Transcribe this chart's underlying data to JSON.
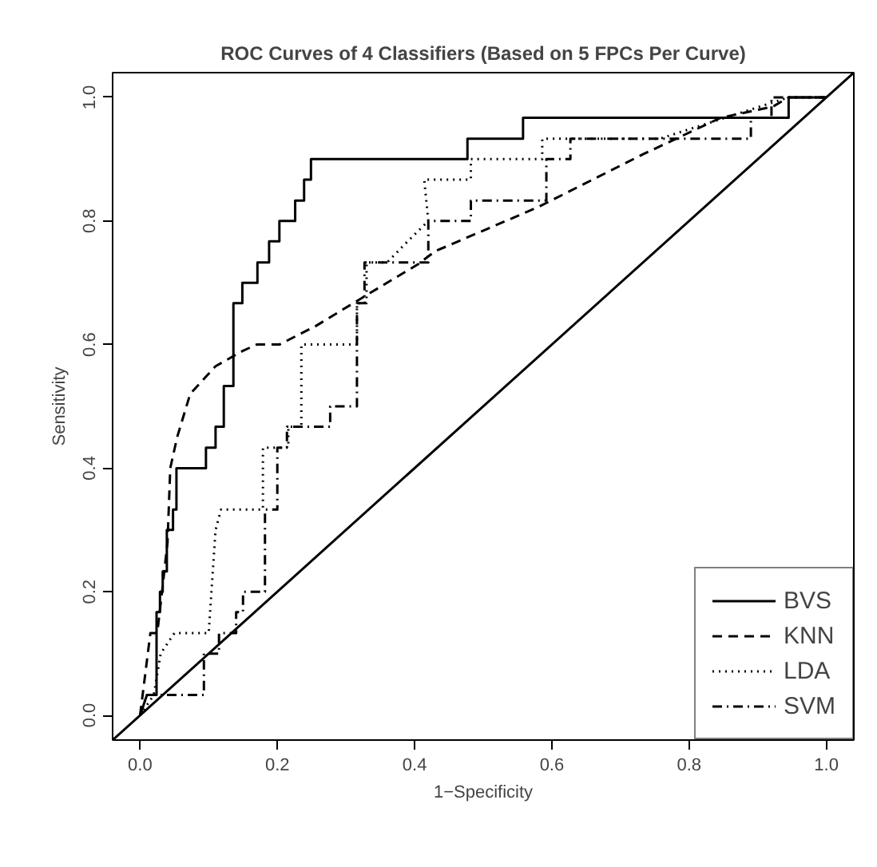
{
  "chart_data": {
    "type": "step",
    "title": "ROC Curves of 4 Classifiers (Based on 5 FPCs Per Curve)",
    "xlabel": "1−Specificity",
    "ylabel": "Sensitivity",
    "xlim": [
      -0.04,
      1.04
    ],
    "ylim": [
      -0.04,
      1.04
    ],
    "xticks": [
      {
        "value": 0,
        "label": "0.0"
      },
      0.2,
      0.4,
      0.6,
      0.8,
      {
        "value": 1,
        "label": "1.0"
      }
    ],
    "yticks": [
      {
        "value": 0,
        "label": "0.0"
      },
      0.2,
      0.4,
      0.6,
      0.8,
      {
        "value": 1,
        "label": "1.0"
      }
    ],
    "grid": false,
    "legend": "bottom right",
    "series": [
      {
        "name": "BVS",
        "color": "#000000",
        "line_style": "solid",
        "x": [
          0,
          0.01,
          0.024,
          0.024,
          0.029,
          0.029,
          0.033,
          0.033,
          0.039,
          0.039,
          0.048,
          0.048,
          0.053,
          0.053,
          0.096,
          0.096,
          0.11,
          0.11,
          0.122,
          0.122,
          0.136,
          0.136,
          0.149,
          0.149,
          0.171,
          0.171,
          0.188,
          0.188,
          0.203,
          0.203,
          0.226,
          0.226,
          0.239,
          0.239,
          0.249,
          0.249,
          0.477,
          0.477,
          0.558,
          0.558,
          0.945,
          0.945,
          1.0
        ],
        "values": [
          0,
          0.033,
          0.033,
          0.167,
          0.167,
          0.2,
          0.2,
          0.233,
          0.233,
          0.3,
          0.3,
          0.333,
          0.333,
          0.4,
          0.4,
          0.433,
          0.433,
          0.467,
          0.467,
          0.533,
          0.533,
          0.667,
          0.667,
          0.7,
          0.7,
          0.733,
          0.733,
          0.767,
          0.767,
          0.8,
          0.8,
          0.833,
          0.833,
          0.867,
          0.867,
          0.9,
          0.9,
          0.933,
          0.933,
          0.967,
          0.967,
          1.0,
          1.0
        ]
      },
      {
        "name": "KNN",
        "color": "#000000",
        "line_style": "dashed",
        "type": "line",
        "x": [
          0,
          0.015,
          0.025,
          0.032,
          0.04,
          0.044,
          0.054,
          0.073,
          0.11,
          0.15,
          0.17,
          0.203,
          0.256,
          0.33,
          0.405,
          0.43,
          0.581,
          0.733,
          0.846,
          0.922,
          0.945,
          1.0
        ],
        "values": [
          0,
          0.133,
          0.133,
          0.2,
          0.28,
          0.4,
          0.45,
          0.52,
          0.565,
          0.59,
          0.6,
          0.6,
          0.63,
          0.68,
          0.73,
          0.751,
          0.823,
          0.908,
          0.967,
          0.985,
          1.0,
          1.0
        ]
      },
      {
        "name": "LDA",
        "color": "#000000",
        "line_style": "dotted",
        "x": [
          0,
          0.02,
          0.03,
          0.05,
          0.1,
          0.11,
          0.118,
          0.179,
          0.179,
          0.216,
          0.216,
          0.235,
          0.235,
          0.316,
          0.316,
          0.33,
          0.33,
          0.36,
          0.39,
          0.42,
          0.414,
          0.482,
          0.482,
          0.586,
          0.586,
          0.757,
          0.945,
          1.0
        ],
        "values": [
          0,
          0.033,
          0.1,
          0.133,
          0.133,
          0.3,
          0.333,
          0.333,
          0.433,
          0.433,
          0.467,
          0.467,
          0.6,
          0.6,
          0.667,
          0.667,
          0.733,
          0.733,
          0.767,
          0.8,
          0.867,
          0.867,
          0.9,
          0.9,
          0.933,
          0.933,
          1.0,
          1.0
        ]
      },
      {
        "name": "SVM",
        "color": "#000000",
        "line_style": "dashdot",
        "x": [
          0,
          0.01,
          0.093,
          0.093,
          0.115,
          0.115,
          0.14,
          0.14,
          0.15,
          0.15,
          0.182,
          0.182,
          0.2,
          0.2,
          0.214,
          0.214,
          0.277,
          0.277,
          0.316,
          0.316,
          0.327,
          0.327,
          0.42,
          0.42,
          0.482,
          0.482,
          0.592,
          0.592,
          0.627,
          0.627,
          0.89,
          0.89,
          0.92,
          0.92,
          1.0
        ],
        "values": [
          0,
          0.033,
          0.033,
          0.1,
          0.1,
          0.133,
          0.133,
          0.167,
          0.167,
          0.2,
          0.2,
          0.333,
          0.333,
          0.433,
          0.433,
          0.467,
          0.467,
          0.5,
          0.5,
          0.667,
          0.667,
          0.733,
          0.733,
          0.8,
          0.8,
          0.833,
          0.833,
          0.9,
          0.9,
          0.933,
          0.933,
          0.967,
          0.967,
          1.0,
          1.0
        ]
      },
      {
        "color": "#000000",
        "line_style": "solid",
        "type": "line",
        "x": [
          -0.04,
          1.04
        ],
        "values": [
          -0.04,
          1.04
        ]
      }
    ]
  }
}
